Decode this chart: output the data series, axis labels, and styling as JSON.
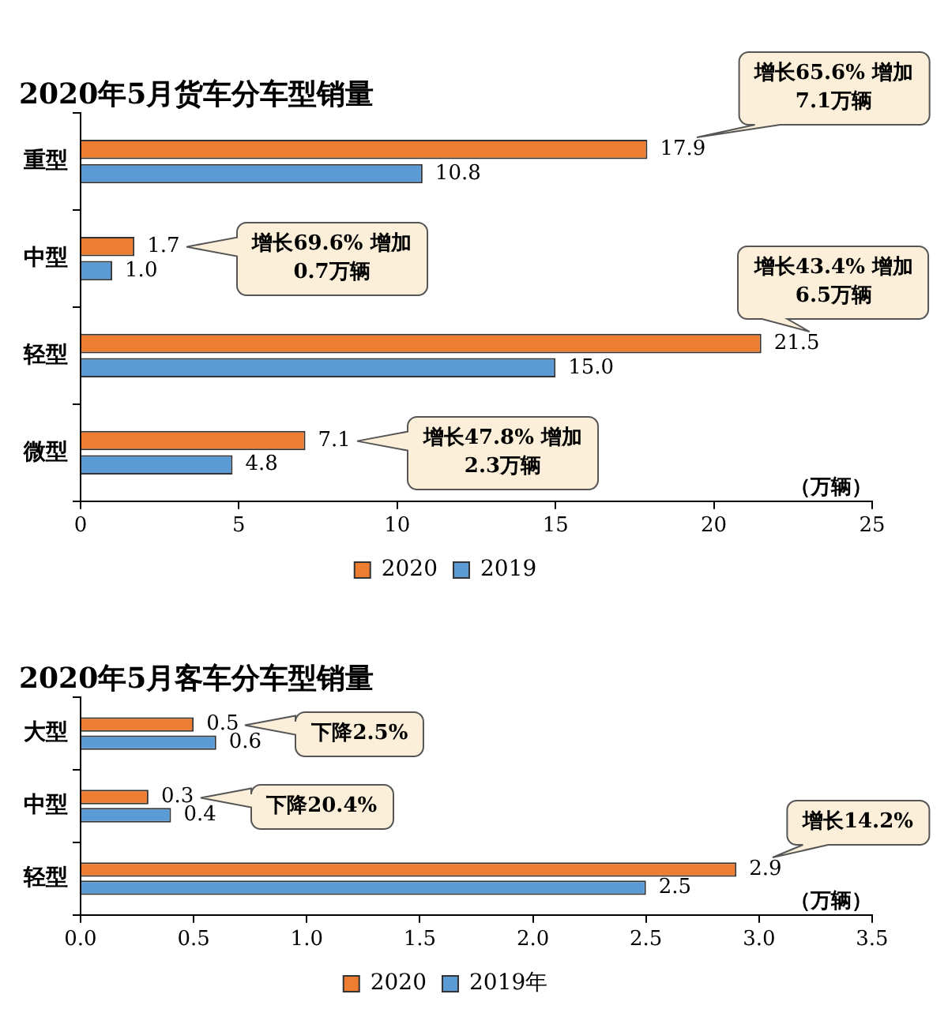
{
  "chart_data": [
    {
      "type": "bar",
      "orientation": "horizontal",
      "title": "2020年5月货车分车型销量",
      "xlabel": "（万辆）",
      "categories": [
        "重型",
        "中型",
        "轻型",
        "微型"
      ],
      "series": [
        {
          "name": "2020",
          "color": "#ed7d31",
          "values": [
            17.9,
            1.7,
            21.5,
            7.1
          ],
          "value_labels": [
            "17.9",
            "1.7",
            "21.5",
            "7.1"
          ]
        },
        {
          "name": "2019",
          "color": "#5b9bd5",
          "values": [
            10.8,
            1.0,
            15.0,
            4.8
          ],
          "value_labels": [
            "10.8",
            "1.0",
            "15.0",
            "4.8"
          ]
        }
      ],
      "xlim": [
        0,
        25
      ],
      "xticks": [
        0,
        5,
        10,
        15,
        20,
        25
      ],
      "grid": false,
      "legend": "bottom",
      "annotations": [
        "增长65.6% 增加7.1万辆",
        "增长69.6% 增加0.7万辆",
        "增长43.4% 增加6.5万辆",
        "增长47.8% 增加2.3万辆"
      ]
    },
    {
      "type": "bar",
      "orientation": "horizontal",
      "title": "2020年5月客车分车型销量",
      "xlabel": "（万辆）",
      "categories": [
        "大型",
        "中型",
        "轻型"
      ],
      "series": [
        {
          "name": "2020",
          "color": "#ed7d31",
          "values": [
            0.5,
            0.3,
            2.9
          ],
          "value_labels": [
            "0.5",
            "0.3",
            "2.9"
          ]
        },
        {
          "name": "2019年",
          "color": "#5b9bd5",
          "values": [
            0.6,
            0.4,
            2.5
          ],
          "value_labels": [
            "0.6",
            "0.4",
            "2.5"
          ]
        }
      ],
      "xlim": [
        0,
        3.5
      ],
      "xticks": [
        {
          "value": 0,
          "label": "0.0"
        },
        {
          "value": 0.5,
          "label": "0.5"
        },
        {
          "value": 1,
          "label": "1.0"
        },
        {
          "value": 1.5,
          "label": "1.5"
        },
        {
          "value": 2,
          "label": "2.0"
        },
        {
          "value": 2.5,
          "label": "2.5"
        },
        {
          "value": 3,
          "label": "3.0"
        },
        {
          "value": 3.5,
          "label": "3.5"
        }
      ],
      "grid": false,
      "legend": "bottom",
      "annotations": [
        "下降2.5%",
        "下降20.4%",
        "增长14.2%"
      ]
    }
  ]
}
